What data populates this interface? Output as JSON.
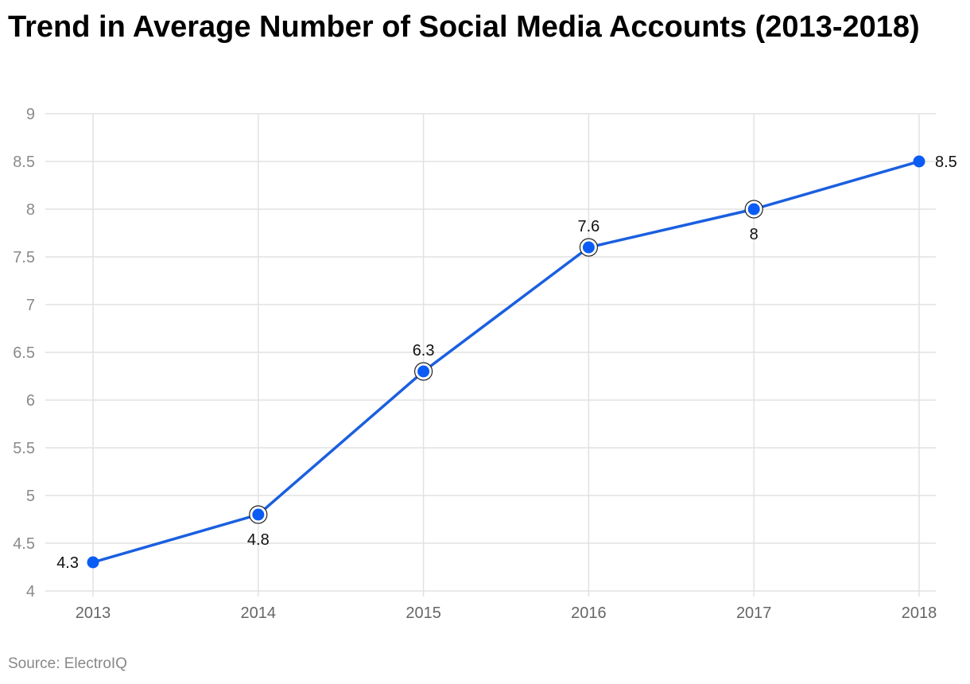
{
  "chart_data": {
    "type": "line",
    "title": "Trend in Average Number of Social Media Accounts (2013-2018)",
    "xlabel": "",
    "ylabel": "",
    "categories": [
      "2013",
      "2014",
      "2015",
      "2016",
      "2017",
      "2018"
    ],
    "series": [
      {
        "values": [
          4.3,
          4.8,
          6.3,
          7.6,
          8,
          8.5
        ],
        "label_positions": [
          "left",
          "below",
          "above",
          "above",
          "below",
          "right"
        ]
      }
    ],
    "ylim": [
      4,
      9
    ],
    "yticks": [
      "4",
      "4.5",
      "5",
      "5.5",
      "6",
      "6.5",
      "7",
      "7.5",
      "8",
      "8.5",
      "9"
    ],
    "grid": true,
    "legend": "none",
    "colors": {
      "line": "#1a5fe0",
      "marker": "#0a5cf5",
      "grid": "#e2e2e2"
    }
  },
  "source": "Source: ElectroIQ"
}
